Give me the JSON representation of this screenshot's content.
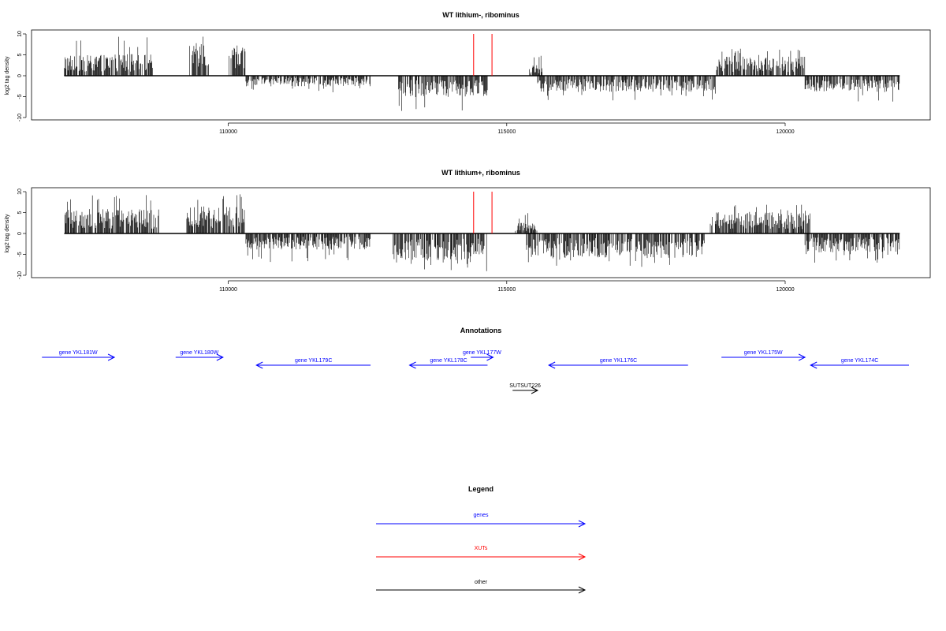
{
  "colors": {
    "bars": "#000000",
    "marker": "#ff0000",
    "gene": "#0000ff",
    "xut": "#ff0000",
    "other": "#000000"
  },
  "chart_data": [
    {
      "type": "bar",
      "title": "WT lithium-, ribominus",
      "ylabel": "log2 tag density",
      "xlim": [
        106300,
        122300
      ],
      "ylim": [
        -10,
        10
      ],
      "xticks": [
        110000,
        115000,
        120000
      ],
      "yticks": [
        10,
        5,
        0,
        -5,
        -10
      ],
      "markers_x": [
        114350,
        114680
      ],
      "profile": {
        "positive_segments": [
          {
            "x": [
              107000,
              108600
            ],
            "max": 9.5,
            "typical": 4
          },
          {
            "x": [
              109250,
              109600
            ],
            "max": 10,
            "typical": 6
          },
          {
            "x": [
              109950,
              110250
            ],
            "max": 8,
            "typical": 5
          },
          {
            "x": [
              115350,
              115600
            ],
            "max": 5,
            "typical": 2
          },
          {
            "x": [
              118700,
              120300
            ],
            "max": 6.5,
            "typical": 3.5
          }
        ],
        "negative_segments": [
          {
            "x": [
              110250,
              112500
            ],
            "max": 4,
            "typical": 2
          },
          {
            "x": [
              113000,
              114600
            ],
            "max": 8.5,
            "typical": 4
          },
          {
            "x": [
              115500,
              118700
            ],
            "max": 6,
            "typical": 3
          },
          {
            "x": [
              120300,
              122000
            ],
            "max": 6.5,
            "typical": 3
          }
        ]
      }
    },
    {
      "type": "bar",
      "title": "WT lithium+, ribominus",
      "ylabel": "log2 tag density",
      "xlim": [
        106300,
        122300
      ],
      "ylim": [
        -10,
        10
      ],
      "xticks": [
        110000,
        115000,
        120000
      ],
      "yticks": [
        10,
        5,
        0,
        -5,
        -10
      ],
      "markers_x": [
        114350,
        114680
      ],
      "profile": {
        "positive_segments": [
          {
            "x": [
              107000,
              108700
            ],
            "max": 9.5,
            "typical": 4.5
          },
          {
            "x": [
              109200,
              110250
            ],
            "max": 9.5,
            "typical": 5
          },
          {
            "x": [
              115100,
              115500
            ],
            "max": 5,
            "typical": 2
          },
          {
            "x": [
              118600,
              120400
            ],
            "max": 7,
            "typical": 4
          }
        ],
        "negative_segments": [
          {
            "x": [
              110250,
              112500
            ],
            "max": 7,
            "typical": 3
          },
          {
            "x": [
              112900,
              114600
            ],
            "max": 9.5,
            "typical": 5
          },
          {
            "x": [
              115300,
              118500
            ],
            "max": 8,
            "typical": 4.5
          },
          {
            "x": [
              120300,
              122000
            ],
            "max": 7,
            "typical": 3.5
          }
        ]
      }
    }
  ],
  "annotations": {
    "title": "Annotations",
    "features": [
      {
        "label": "gene YKL181W",
        "start": 106600,
        "end": 107900,
        "strand": "+",
        "kind": "gene",
        "row": 0
      },
      {
        "label": "gene YKL180W",
        "start": 109000,
        "end": 109850,
        "strand": "+",
        "kind": "gene",
        "row": 0
      },
      {
        "label": "gene YKL179C",
        "start": 110450,
        "end": 112500,
        "strand": "-",
        "kind": "gene",
        "row": 1
      },
      {
        "label": "gene YKL178C",
        "start": 113200,
        "end": 114600,
        "strand": "-",
        "kind": "gene",
        "row": 1
      },
      {
        "label": "gene YKL177W",
        "start": 114300,
        "end": 114700,
        "strand": "+",
        "kind": "gene",
        "row": 0
      },
      {
        "label": "gene YKL176C",
        "start": 115700,
        "end": 118200,
        "strand": "-",
        "kind": "gene",
        "row": 1
      },
      {
        "label": "gene YKL175W",
        "start": 118800,
        "end": 120300,
        "strand": "+",
        "kind": "gene",
        "row": 0
      },
      {
        "label": "gene YKL174C",
        "start": 120400,
        "end": 122300,
        "strand": "-",
        "kind": "gene",
        "row": 1
      },
      {
        "label": "SUTSUT226",
        "start": 115050,
        "end": 115500,
        "strand": "+",
        "kind": "other",
        "row": 2
      }
    ]
  },
  "legend": {
    "title": "Legend",
    "items": [
      {
        "label": "genes",
        "kind": "gene"
      },
      {
        "label": "XUTs",
        "kind": "xut"
      },
      {
        "label": "other",
        "kind": "other"
      }
    ]
  }
}
